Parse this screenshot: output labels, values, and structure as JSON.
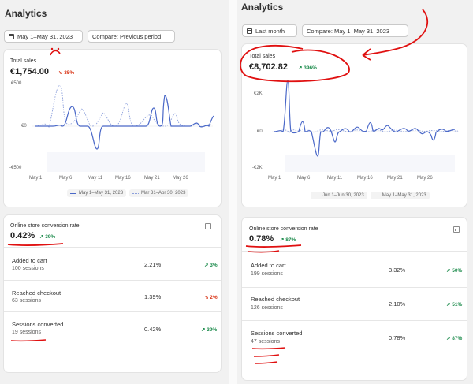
{
  "left": {
    "title": "Analytics",
    "date_button": "May 1–May 31, 2023",
    "compare_button": "Compare: Previous period",
    "total_sales": {
      "label": "Total sales",
      "value": "€1,754.00",
      "change": "↘ 35%"
    },
    "y_ticks": [
      "€500",
      "€0",
      "-€500"
    ],
    "x_ticks": [
      "May 1",
      "May 6",
      "May 11",
      "May 16",
      "May 21",
      "May 26"
    ],
    "legend": [
      "May 1–May 31, 2023",
      "Mar 31–Apr 30, 2023"
    ],
    "conversion": {
      "label": "Online store conversion rate",
      "value": "0.42%",
      "change": "↗ 39%",
      "rows": [
        {
          "label": "Added to cart",
          "sessions": "100 sessions",
          "value": "2.21%",
          "change": "↗ 3%",
          "dir": "up"
        },
        {
          "label": "Reached checkout",
          "sessions": "63 sessions",
          "value": "1.39%",
          "change": "↘ 2%",
          "dir": "down"
        },
        {
          "label": "Sessions converted",
          "sessions": "19 sessions",
          "value": "0.42%",
          "change": "↗ 39%",
          "dir": "up"
        }
      ]
    }
  },
  "right": {
    "title": "Analytics",
    "date_button": "Last month",
    "compare_button": "Compare: May 1–May 31, 2023",
    "total_sales": {
      "label": "Total sales",
      "value": "€8,702.82",
      "change": "↗ 396%"
    },
    "y_ticks": [
      "€2K",
      "€0",
      "-€2K"
    ],
    "x_ticks": [
      "May 1",
      "May 6",
      "May 11",
      "May 16",
      "May 21",
      "May 26"
    ],
    "legend": [
      "Jun 1–Jun 30, 2023",
      "May 1–May 31, 2023"
    ],
    "conversion": {
      "label": "Online store conversion rate",
      "value": "0.78%",
      "change": "↗ 87%",
      "rows": [
        {
          "label": "Added to cart",
          "sessions": "199 sessions",
          "value": "3.32%",
          "change": "↗ 50%",
          "dir": "up"
        },
        {
          "label": "Reached checkout",
          "sessions": "126 sessions",
          "value": "2.10%",
          "change": "↗ 51%",
          "dir": "up"
        },
        {
          "label": "Sessions converted",
          "sessions": "47 sessions",
          "value": "0.78%",
          "change": "↗ 87%",
          "dir": "up"
        }
      ]
    }
  },
  "colors": {
    "primary_line": "#4a68c8",
    "comparison_line": "#8da0dc",
    "annotation": "#e01010",
    "up": "#1a8a4a",
    "down": "#d72c0d"
  }
}
